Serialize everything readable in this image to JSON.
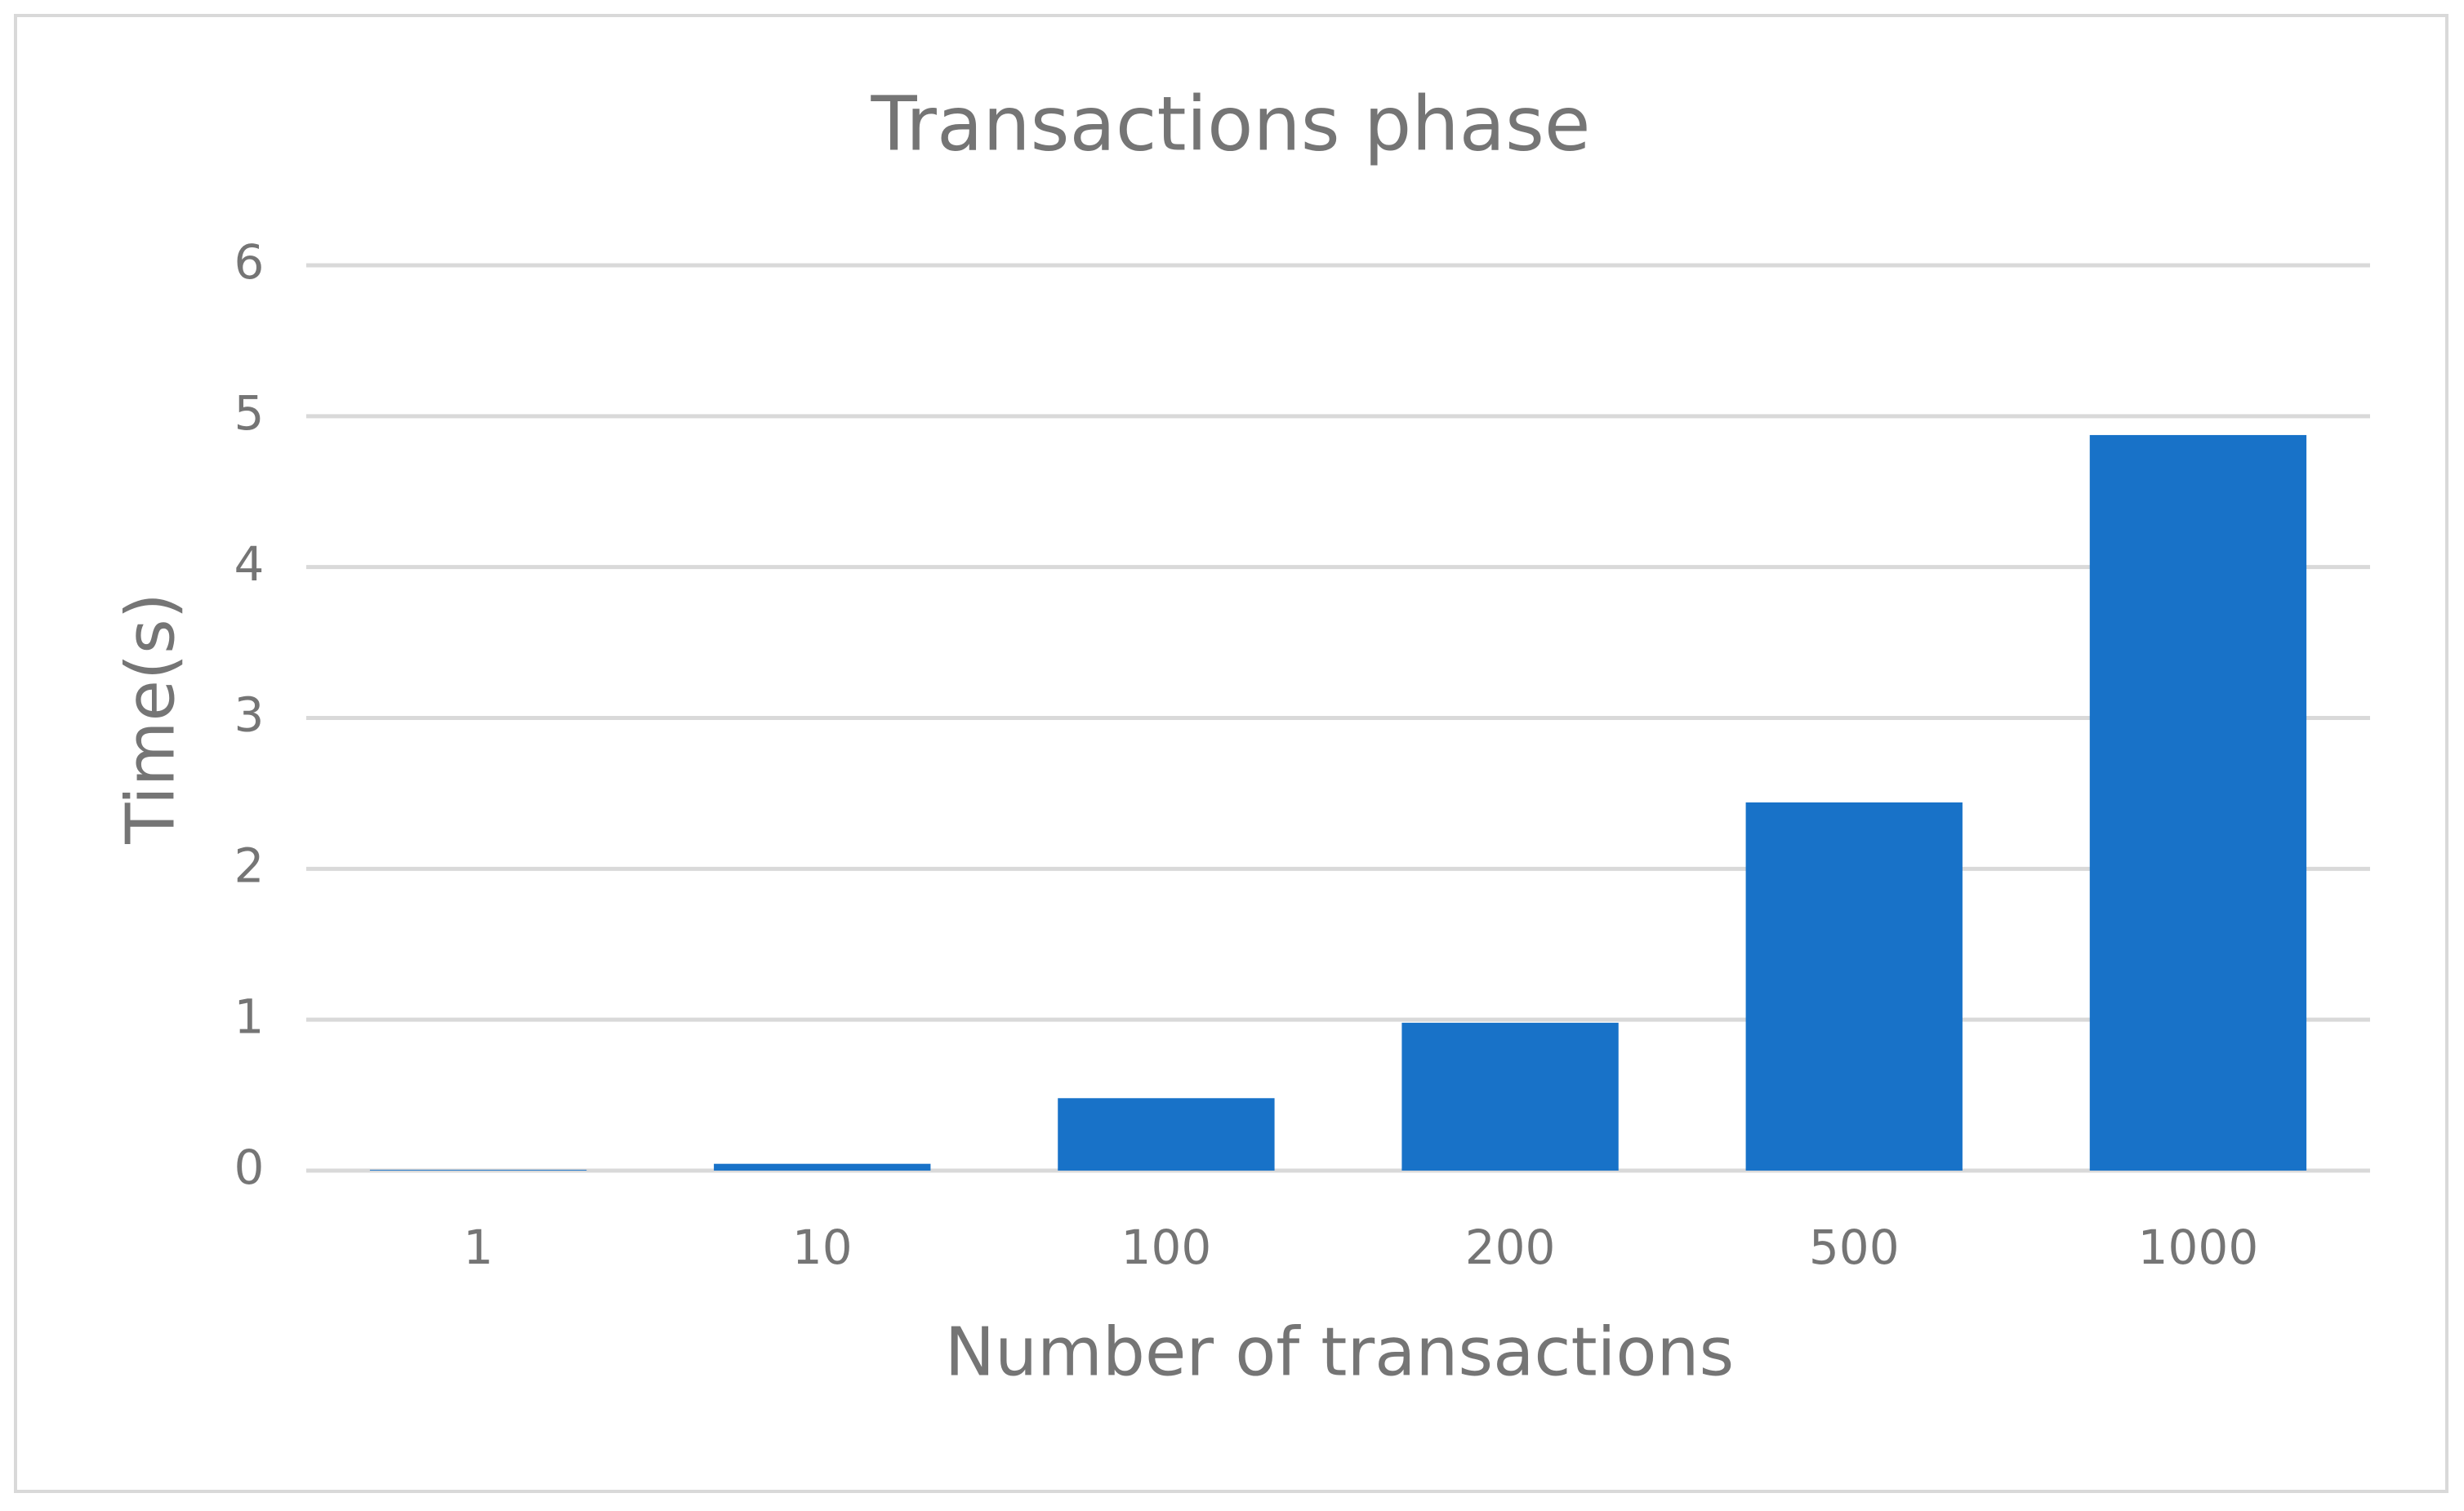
{
  "chart_data": {
    "type": "bar",
    "title": "Transactions phase",
    "x_label": "Number of transactions",
    "y_label": "Time(s)",
    "categories": [
      "1",
      "10",
      "100",
      "200",
      "500",
      "1000"
    ],
    "values": [
      0.005,
      0.045,
      0.48,
      0.98,
      2.44,
      4.875
    ],
    "color": "#1872c8",
    "ylim": [
      0,
      6
    ],
    "yticks": [
      0,
      1,
      2,
      3,
      4,
      5,
      6
    ],
    "grid": true
  }
}
